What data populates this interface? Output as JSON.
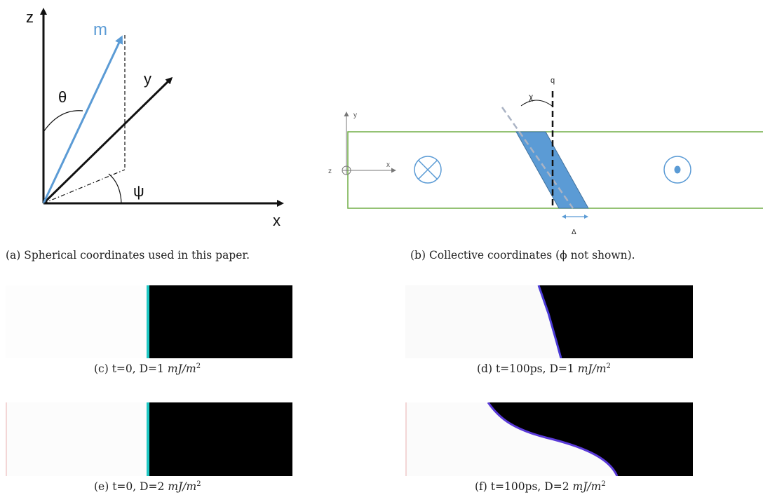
{
  "figure_a": {
    "axis_z": "z",
    "axis_y": "y",
    "axis_x": "x",
    "vector_m": "m",
    "angle_theta": "θ",
    "angle_psi": "ψ",
    "caption": "(a) Spherical coordinates used in this paper.",
    "colors": {
      "m_vector": "#5b9bd5",
      "axes": "#111111"
    }
  },
  "figure_b": {
    "axis_y": "y",
    "axis_x": "x",
    "axis_z": "z",
    "label_q": "q",
    "label_chi": "χ",
    "label_delta": "Δ",
    "caption": "(b) Collective coordinates (ϕ not shown).",
    "colors": {
      "strip_border": "#70ad47",
      "wall_fill": "#5b9bd5",
      "wall_edge": "#41719c",
      "symbols": "#5b9bd5"
    }
  },
  "panels": [
    {
      "id": "c",
      "caption_prefix": "(c) t=0, D=1 ",
      "unit": "mJ/m",
      "exp": "2"
    },
    {
      "id": "d",
      "caption_prefix": "(d) t=100ps, D=1 ",
      "unit": "mJ/m",
      "exp": "2"
    },
    {
      "id": "e",
      "caption_prefix": "(e) t=0, D=2 ",
      "unit": "mJ/m",
      "exp": "2"
    },
    {
      "id": "f",
      "caption_prefix": "(f) t=100ps, D=2 ",
      "unit": "mJ/m",
      "exp": "2"
    }
  ]
}
